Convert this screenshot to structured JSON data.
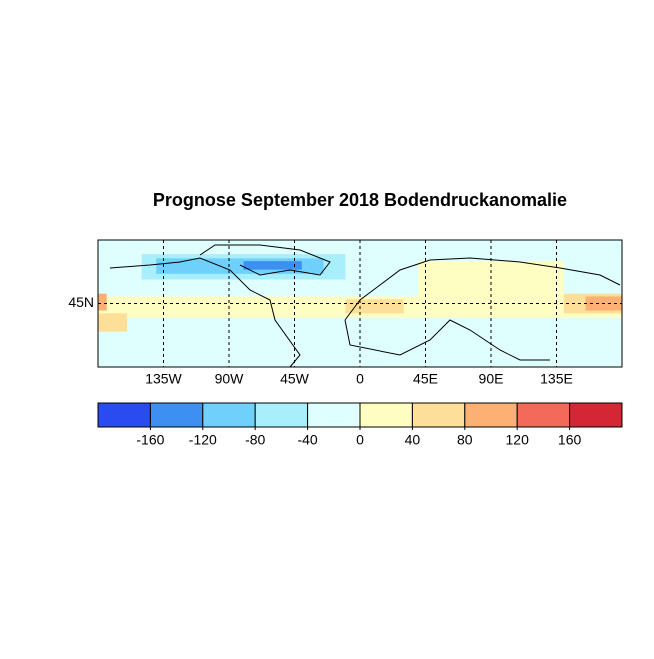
{
  "chart_data": {
    "type": "map",
    "title": "Prognose September 2018 Bodendruckanomalie",
    "xlim": [
      -180,
      180
    ],
    "ylim": [
      0,
      90
    ],
    "xticks": [
      {
        "value": -135,
        "label": "135W"
      },
      {
        "value": -90,
        "label": "90W"
      },
      {
        "value": -45,
        "label": "45W"
      },
      0,
      {
        "value": 45,
        "label": "45E"
      },
      {
        "value": 90,
        "label": "90E"
      },
      {
        "value": 135,
        "label": "135E"
      }
    ],
    "yticks": [
      {
        "value": 45,
        "label": "45N"
      }
    ],
    "grid": true,
    "background_value": -20,
    "patches": [
      {
        "lon": [
          -180,
          180
        ],
        "lat": [
          35,
          50
        ],
        "value": 20
      },
      {
        "lon": [
          40,
          140
        ],
        "lat": [
          50,
          75
        ],
        "value": 20
      },
      {
        "lon": [
          -180,
          10
        ],
        "lat": [
          55,
          90
        ],
        "value": -20
      },
      {
        "lon": [
          -150,
          -10
        ],
        "lat": [
          62,
          80
        ],
        "value": -60
      },
      {
        "lon": [
          -140,
          -25
        ],
        "lat": [
          66,
          77
        ],
        "value": -120
      },
      {
        "lon": [
          -80,
          -40
        ],
        "lat": [
          69,
          75
        ],
        "value": -140
      },
      {
        "lon": [
          140,
          180
        ],
        "lat": [
          38,
          52
        ],
        "value": 60
      },
      {
        "lon": [
          155,
          180
        ],
        "lat": [
          40,
          50
        ],
        "value": 100
      },
      {
        "lon": [
          -180,
          -174
        ],
        "lat": [
          40,
          52
        ],
        "value": 100
      },
      {
        "lon": [
          -180,
          -160
        ],
        "lat": [
          25,
          38
        ],
        "value": 40
      },
      {
        "lon": [
          -10,
          30
        ],
        "lat": [
          38,
          48
        ],
        "value": 40
      },
      {
        "lon": [
          40,
          80
        ],
        "lat": [
          5,
          30
        ],
        "value": -20
      }
    ],
    "colorbar": {
      "colors": [
        "#2a4bf0",
        "#3d8ff2",
        "#6fd1fb",
        "#a9effb",
        "#defffe",
        "#fefec2",
        "#fedf98",
        "#fcb074",
        "#f46a5a",
        "#d52733"
      ],
      "ticks": [
        -160,
        -120,
        -80,
        -40,
        0,
        40,
        80,
        120,
        160
      ]
    }
  }
}
